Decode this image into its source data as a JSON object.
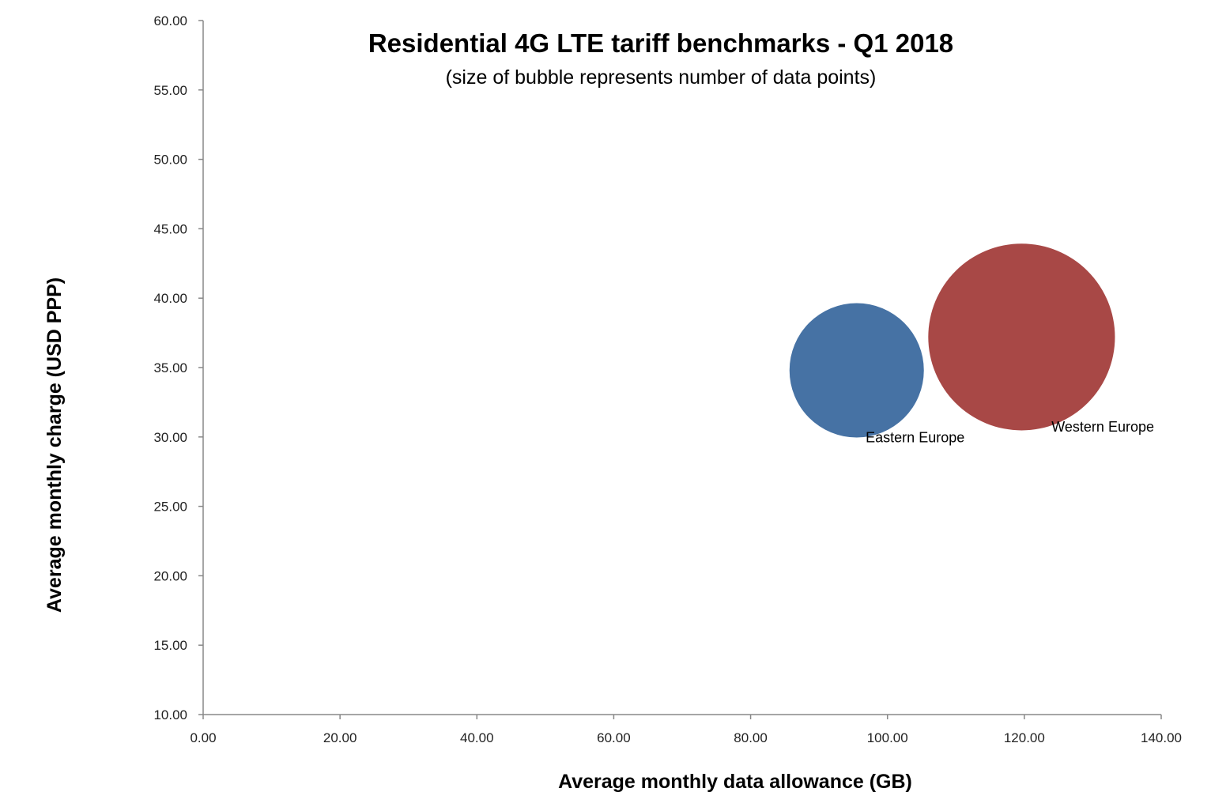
{
  "chart_data": {
    "type": "bubble",
    "title": "Residential 4G LTE tariff benchmarks - Q1 2018",
    "subtitle": "(size of bubble represents number of data points)",
    "xlabel": "Average monthly data allowance (GB)",
    "ylabel": "Average monthly charge (USD PPP)",
    "xlim": [
      0,
      140
    ],
    "ylim": [
      10,
      60
    ],
    "x_ticks": [
      "0.00",
      "20.00",
      "40.00",
      "60.00",
      "80.00",
      "100.00",
      "120.00",
      "140.00"
    ],
    "y_ticks": [
      "10.00",
      "15.00",
      "20.00",
      "25.00",
      "30.00",
      "35.00",
      "40.00",
      "45.00",
      "50.00",
      "55.00",
      "60.00"
    ],
    "grid": false,
    "legend": "none",
    "series": [
      {
        "name": "Eastern Europe",
        "x": 95.5,
        "y": 34.8,
        "size_relative": 1.0,
        "color": "#4672A4"
      },
      {
        "name": "Western Europe",
        "x": 119.6,
        "y": 37.2,
        "size_relative": 1.93,
        "color": "#A84846"
      }
    ]
  }
}
